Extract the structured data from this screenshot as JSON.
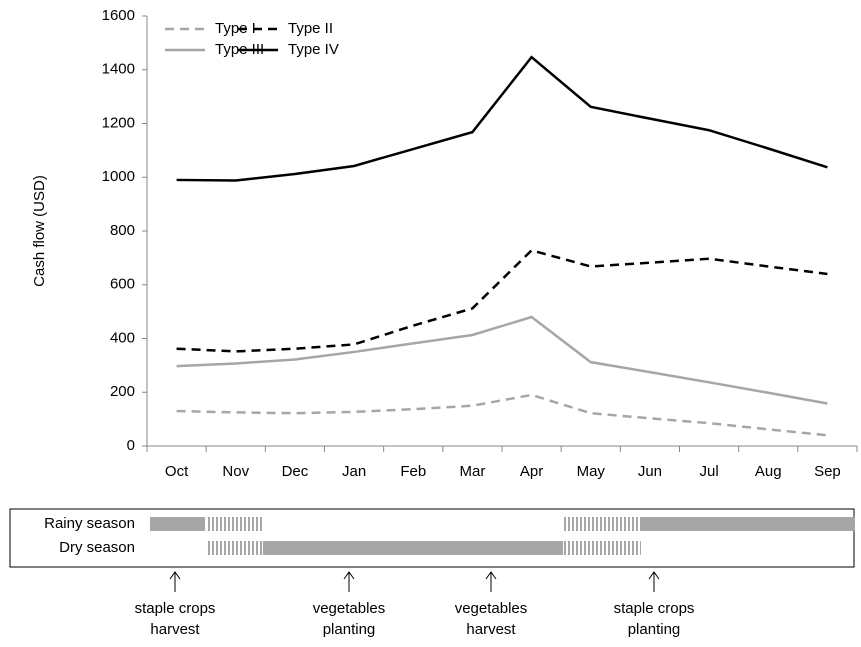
{
  "chart_data": {
    "type": "line",
    "categories": [
      "Oct",
      "Nov",
      "Dec",
      "Jan",
      "Feb",
      "Mar",
      "Apr",
      "May",
      "Jun",
      "Jul",
      "Aug",
      "Sep"
    ],
    "y_label": "Cash flow (USD)",
    "ylim": [
      0,
      1600
    ],
    "yticks": [
      0,
      200,
      400,
      600,
      800,
      1000,
      1200,
      1400,
      1600
    ],
    "legend": "top-left",
    "series": [
      {
        "name": "Type I",
        "color": "#a6a6a6",
        "dashed": true,
        "values": [
          130,
          125,
          122,
          127,
          137,
          150,
          190,
          122,
          103,
          85,
          62,
          40
        ]
      },
      {
        "name": "Type II",
        "color": "#000000",
        "dashed": true,
        "values": [
          362,
          352,
          362,
          378,
          448,
          512,
          728,
          668,
          682,
          697,
          668,
          640
        ]
      },
      {
        "name": "Type III",
        "color": "#a6a6a6",
        "dashed": false,
        "values": [
          297,
          307,
          322,
          350,
          382,
          413,
          480,
          312,
          275,
          237,
          198,
          158
        ]
      },
      {
        "name": "Type IV",
        "color": "#000000",
        "dashed": false,
        "values": [
          990,
          988,
          1012,
          1042,
          1105,
          1168,
          1447,
          1262,
          1218,
          1175,
          1107,
          1037
        ]
      }
    ]
  },
  "season_diagram": {
    "rows": [
      "Rainy season",
      "Dry season"
    ],
    "annotations": [
      [
        "staple crops",
        "harvest"
      ],
      [
        "vegetables",
        "planting"
      ],
      [
        "vegetables",
        "harvest"
      ],
      [
        "staple crops",
        "planting"
      ]
    ]
  }
}
